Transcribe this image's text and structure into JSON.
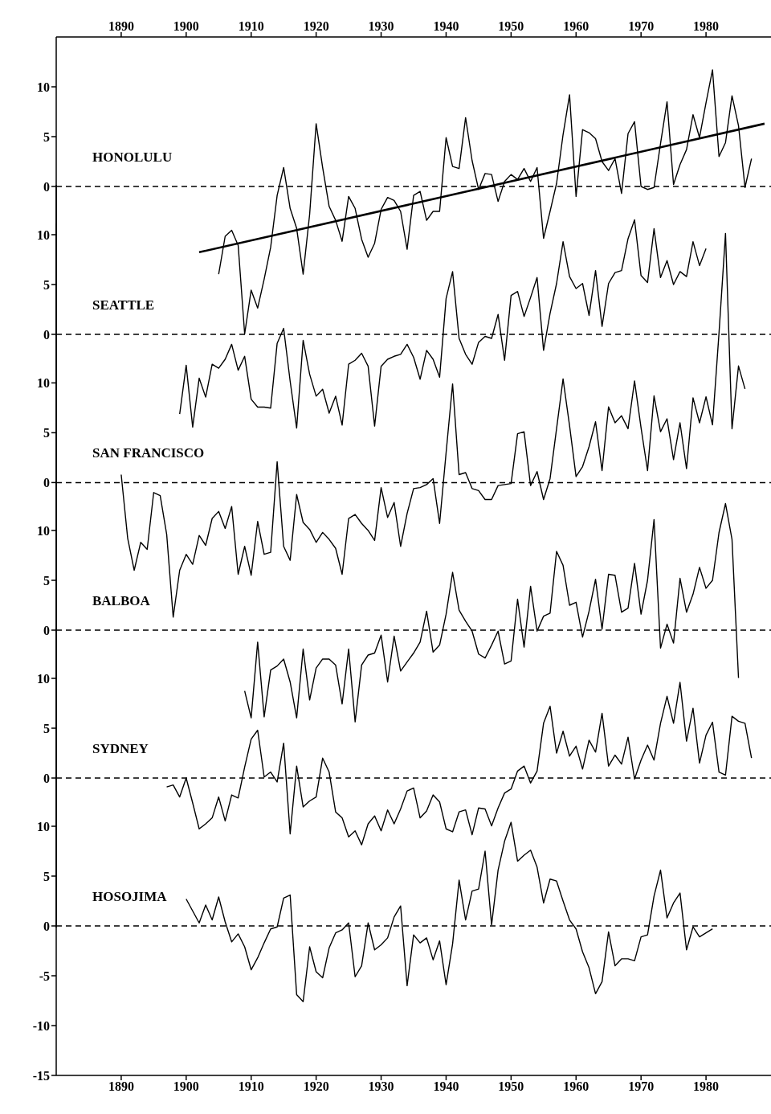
{
  "chart_data": [
    {
      "type": "line",
      "xlim": [
        1880,
        1990
      ],
      "xticks": [
        1890,
        1900,
        1910,
        1920,
        1930,
        1940,
        1950,
        1960,
        1970,
        1980
      ],
      "ylim": [
        -15,
        15
      ],
      "yticks": [
        0,
        5,
        10
      ],
      "grid": false,
      "legend": false,
      "marker": "none",
      "line_style": "solid",
      "ref_lines": [
        {
          "axis": "y",
          "value": 0,
          "line_style": "dashed"
        }
      ],
      "series": [
        {
          "name": "HONOLULU",
          "color": "#000000",
          "x": [
            1905,
            1906,
            1907,
            1908,
            1909,
            1910,
            1911,
            1912,
            1913,
            1914,
            1915,
            1916,
            1917,
            1918,
            1919,
            1920,
            1921,
            1922,
            1923,
            1924,
            1925,
            1926,
            1927,
            1928,
            1929,
            1930,
            1931,
            1932,
            1933,
            1934,
            1935,
            1936,
            1937,
            1938,
            1939,
            1940,
            1941,
            1942,
            1943,
            1944,
            1945,
            1946,
            1947,
            1948,
            1949,
            1950,
            1951,
            1952,
            1953,
            1954,
            1955,
            1956,
            1957,
            1958,
            1959,
            1960,
            1961,
            1962,
            1963,
            1964,
            1965,
            1966,
            1967,
            1968,
            1969,
            1970,
            1971,
            1972,
            1973,
            1974,
            1975,
            1976,
            1977,
            1978,
            1979,
            1980,
            1981,
            1982,
            1983,
            1984,
            1985,
            1986,
            1987
          ],
          "values": [
            -8.8,
            -5.0,
            -4.4,
            -5.9,
            -14.8,
            -10.4,
            -12.2,
            -9.3,
            -6.1,
            -0.9,
            1.9,
            -2.2,
            -4.2,
            -8.8,
            -2.8,
            6.3,
            1.9,
            -2.0,
            -3.4,
            -5.5,
            -1.0,
            -2.2,
            -5.3,
            -7.1,
            -5.7,
            -2.3,
            -1.1,
            -1.4,
            -2.5,
            -6.3,
            -0.9,
            -0.5,
            -3.4,
            -2.5,
            -2.5,
            4.9,
            2.0,
            1.8,
            6.9,
            2.6,
            -0.3,
            1.3,
            1.2,
            -1.5,
            0.5,
            1.2,
            0.7,
            1.8,
            0.5,
            1.9,
            -5.2,
            -2.5,
            0.3,
            5.2,
            9.2,
            -1.0,
            5.7,
            5.4,
            4.8,
            2.5,
            1.6,
            2.8,
            -0.7,
            5.3,
            6.5,
            0.0,
            -0.3,
            -0.1,
            4.3,
            8.5,
            0.2,
            2.2,
            3.7,
            7.2,
            4.9,
            8.4,
            11.7,
            3.0,
            4.4,
            9.1,
            6.1,
            -0.1,
            2.8
          ]
        },
        {
          "type": "line",
          "color": "#000000",
          "x": [
            1902,
            1989
          ],
          "values": [
            -6.6,
            6.3
          ]
        }
      ]
    },
    {
      "type": "line",
      "xlim": [
        1880,
        1990
      ],
      "tick_labels": "y",
      "ylim": [
        -15,
        15
      ],
      "yticks": [
        0,
        5,
        10
      ],
      "grid": false,
      "legend": false,
      "marker": "none",
      "line_style": "solid",
      "ref_lines": [
        {
          "axis": "y",
          "value": 0,
          "line_style": "dashed"
        }
      ],
      "series": [
        {
          "name": "SEATTLE",
          "color": "#000000",
          "x": [
            1899,
            1900,
            1901,
            1902,
            1903,
            1904,
            1905,
            1906,
            1907,
            1908,
            1909,
            1910,
            1911,
            1912,
            1913,
            1914,
            1915,
            1916,
            1917,
            1918,
            1919,
            1920,
            1921,
            1922,
            1923,
            1924,
            1925,
            1926,
            1927,
            1928,
            1929,
            1930,
            1931,
            1932,
            1933,
            1934,
            1935,
            1936,
            1937,
            1938,
            1939,
            1940,
            1941,
            1942,
            1943,
            1944,
            1945,
            1946,
            1947,
            1948,
            1949,
            1950,
            1951,
            1952,
            1953,
            1954,
            1955,
            1956,
            1957,
            1958,
            1959,
            1960,
            1961,
            1962,
            1963,
            1964,
            1965,
            1966,
            1967,
            1968,
            1969,
            1970,
            1971,
            1972,
            1973,
            1974,
            1975,
            1976,
            1977,
            1978,
            1979,
            1980
          ],
          "values": [
            -8.0,
            -3.1,
            -9.3,
            -4.4,
            -6.3,
            -3.0,
            -3.4,
            -2.5,
            -1.0,
            -3.6,
            -2.2,
            -6.5,
            -7.3,
            -7.3,
            -7.4,
            -0.9,
            0.6,
            -4.7,
            -9.4,
            -0.6,
            -4.0,
            -6.2,
            -5.5,
            -7.9,
            -6.2,
            -9.1,
            -3.0,
            -2.6,
            -1.9,
            -3.2,
            -9.2,
            -3.2,
            -2.5,
            -2.2,
            -2.0,
            -1.0,
            -2.3,
            -4.5,
            -1.6,
            -2.5,
            -4.3,
            3.6,
            6.3,
            -0.4,
            -2.0,
            -3.0,
            -0.8,
            -0.2,
            -0.4,
            2.0,
            -2.6,
            3.9,
            4.3,
            1.8,
            3.7,
            5.7,
            -1.6,
            2.1,
            5.1,
            9.3,
            5.8,
            4.6,
            5.1,
            1.9,
            6.4,
            0.8,
            5.1,
            6.2,
            6.4,
            9.6,
            11.5,
            5.9,
            5.2,
            10.6,
            5.7,
            7.4,
            5.0,
            6.3,
            5.8,
            9.3,
            6.9,
            8.6
          ]
        }
      ]
    },
    {
      "type": "line",
      "xlim": [
        1880,
        1990
      ],
      "tick_labels": "y",
      "ylim": [
        -15,
        26
      ],
      "yticks": [
        0,
        5,
        10
      ],
      "grid": false,
      "legend": false,
      "marker": "none",
      "line_style": "solid",
      "ref_lines": [
        {
          "axis": "y",
          "value": 0,
          "line_style": "dashed"
        }
      ],
      "series": [
        {
          "name": "SAN FRANCISCO",
          "color": "#000000",
          "x": [
            1890,
            1891,
            1892,
            1893,
            1894,
            1895,
            1896,
            1897,
            1898,
            1899,
            1900,
            1901,
            1902,
            1903,
            1904,
            1905,
            1906,
            1907,
            1908,
            1909,
            1910,
            1911,
            1912,
            1913,
            1914,
            1915,
            1916,
            1917,
            1918,
            1919,
            1920,
            1921,
            1922,
            1923,
            1924,
            1925,
            1926,
            1927,
            1928,
            1929,
            1930,
            1931,
            1932,
            1933,
            1934,
            1935,
            1936,
            1937,
            1938,
            1939,
            1940,
            1941,
            1942,
            1943,
            1944,
            1945,
            1946,
            1947,
            1948,
            1949,
            1950,
            1951,
            1952,
            1953,
            1954,
            1955,
            1956,
            1957,
            1958,
            1959,
            1960,
            1961,
            1962,
            1963,
            1964,
            1965,
            1966,
            1967,
            1968,
            1969,
            1970,
            1971,
            1972,
            1973,
            1974,
            1975,
            1976,
            1977,
            1978,
            1979,
            1980,
            1981,
            1982,
            1983,
            1984,
            1985,
            1986
          ],
          "values": [
            0.8,
            -5.6,
            -8.8,
            -6.0,
            -6.7,
            -1.0,
            -1.3,
            -5.2,
            -13.5,
            -8.8,
            -7.2,
            -8.2,
            -5.3,
            -6.3,
            -3.6,
            -2.9,
            -4.6,
            -2.4,
            -9.2,
            -6.4,
            -9.3,
            -3.9,
            -7.2,
            -7.0,
            2.1,
            -6.4,
            -7.8,
            -1.2,
            -4.0,
            -4.7,
            -6.0,
            -5.0,
            -5.7,
            -6.6,
            -9.2,
            -3.6,
            -3.2,
            -4.1,
            -4.8,
            -5.8,
            -0.5,
            -3.5,
            -2.0,
            -6.4,
            -3.1,
            -0.6,
            -0.5,
            -0.2,
            0.4,
            -4.1,
            3.0,
            9.9,
            0.8,
            1.0,
            -0.6,
            -0.8,
            -1.7,
            -1.7,
            -0.3,
            -0.2,
            -0.1,
            4.9,
            5.1,
            -0.3,
            1.1,
            -1.7,
            0.4,
            5.4,
            10.4,
            5.7,
            0.6,
            1.6,
            3.6,
            6.1,
            1.2,
            7.6,
            6.0,
            6.7,
            5.4,
            10.2,
            5.5,
            1.2,
            8.7,
            5.1,
            6.4,
            2.3,
            6.0,
            1.4,
            8.5,
            6.0,
            8.6,
            5.8,
            15,
            25,
            5.4,
            11.7,
            9.4
          ]
        }
      ]
    },
    {
      "type": "line",
      "xlim": [
        1880,
        1990
      ],
      "tick_labels": "y",
      "ylim": [
        -15,
        15
      ],
      "yticks": [
        0,
        5,
        10
      ],
      "grid": false,
      "legend": false,
      "marker": "none",
      "line_style": "solid",
      "ref_lines": [
        {
          "axis": "y",
          "value": 0,
          "line_style": "dashed"
        }
      ],
      "series": [
        {
          "name": "BALBOA",
          "color": "#000000",
          "x": [
            1909,
            1910,
            1911,
            1912,
            1913,
            1914,
            1915,
            1916,
            1917,
            1918,
            1919,
            1920,
            1921,
            1922,
            1923,
            1924,
            1925,
            1926,
            1927,
            1928,
            1929,
            1930,
            1931,
            1932,
            1933,
            1934,
            1935,
            1936,
            1937,
            1938,
            1939,
            1940,
            1941,
            1942,
            1943,
            1944,
            1945,
            1946,
            1947,
            1948,
            1949,
            1950,
            1951,
            1952,
            1953,
            1954,
            1955,
            1956,
            1957,
            1958,
            1959,
            1960,
            1961,
            1962,
            1963,
            1964,
            1965,
            1966,
            1967,
            1968,
            1969,
            1970,
            1971,
            1972,
            1973,
            1974,
            1975,
            1976,
            1977,
            1978,
            1979,
            1980,
            1981,
            1982,
            1983,
            1984,
            1985
          ],
          "values": [
            -6.1,
            -8.8,
            -1.2,
            -8.7,
            -4.0,
            -3.6,
            -2.9,
            -5.2,
            -8.8,
            -1.9,
            -7.0,
            -3.8,
            -2.9,
            -2.9,
            -3.5,
            -7.4,
            -1.9,
            -9.2,
            -3.5,
            -2.5,
            -2.3,
            -0.5,
            -5.2,
            -0.6,
            -4.1,
            -3.2,
            -2.3,
            -1.2,
            1.9,
            -2.2,
            -1.5,
            1.6,
            5.8,
            2.0,
            0.9,
            -0.1,
            -2.4,
            -2.8,
            -1.5,
            -0.1,
            -3.4,
            -3.1,
            3.1,
            -1.7,
            4.4,
            -0.1,
            1.4,
            1.7,
            7.9,
            6.5,
            2.5,
            2.8,
            -0.7,
            1.9,
            5.1,
            0.1,
            5.6,
            5.5,
            1.8,
            2.2,
            6.7,
            1.6,
            5.0,
            11.1,
            -1.8,
            0.6,
            -1.3,
            5.2,
            1.8,
            3.6,
            6.3,
            4.2,
            5.0,
            9.8,
            12.7,
            9.1,
            -4.8
          ]
        }
      ]
    },
    {
      "type": "line",
      "xlim": [
        1880,
        1990
      ],
      "tick_labels": "y",
      "ylim": [
        -15,
        15
      ],
      "yticks": [
        0,
        5,
        10
      ],
      "grid": false,
      "legend": false,
      "marker": "none",
      "line_style": "solid",
      "ref_lines": [
        {
          "axis": "y",
          "value": 0,
          "line_style": "dashed"
        }
      ],
      "series": [
        {
          "name": "SYDNEY",
          "color": "#000000",
          "x": [
            1897,
            1898,
            1899,
            1900,
            1901,
            1902,
            1903,
            1904,
            1905,
            1906,
            1907,
            1908,
            1909,
            1910,
            1911,
            1912,
            1913,
            1914,
            1915,
            1916,
            1917,
            1918,
            1919,
            1920,
            1921,
            1922,
            1923,
            1924,
            1925,
            1926,
            1927,
            1928,
            1929,
            1930,
            1931,
            1932,
            1933,
            1934,
            1935,
            1936,
            1937,
            1938,
            1939,
            1940,
            1941,
            1942,
            1943,
            1944,
            1945,
            1946,
            1947,
            1948,
            1949,
            1950,
            1951,
            1952,
            1953,
            1954,
            1955,
            1956,
            1957,
            1958,
            1959,
            1960,
            1961,
            1962,
            1963,
            1964,
            1965,
            1966,
            1967,
            1968,
            1969,
            1970,
            1971,
            1972,
            1973,
            1974,
            1975,
            1976,
            1977,
            1978,
            1979,
            1980,
            1981,
            1982,
            1983,
            1984,
            1985,
            1986,
            1987
          ],
          "values": [
            -0.9,
            -0.7,
            -1.9,
            0.0,
            -2.5,
            -5.1,
            -4.6,
            -4.0,
            -1.9,
            -4.3,
            -1.7,
            -2.0,
            1.1,
            3.9,
            4.8,
            0.1,
            0.6,
            -0.4,
            3.5,
            -5.6,
            1.2,
            -2.9,
            -2.3,
            -1.9,
            2.0,
            0.6,
            -3.4,
            -4.0,
            -5.9,
            -5.3,
            -6.7,
            -4.6,
            -3.8,
            -5.3,
            -3.2,
            -4.6,
            -3.1,
            -1.3,
            -1.0,
            -4.0,
            -3.3,
            -1.7,
            -2.4,
            -5.1,
            -5.4,
            -3.4,
            -3.2,
            -5.7,
            -3.0,
            -3.1,
            -4.8,
            -3.0,
            -1.5,
            -1.1,
            0.7,
            1.2,
            -0.5,
            0.7,
            5.5,
            7.2,
            2.5,
            4.7,
            2.2,
            3.2,
            0.9,
            3.8,
            2.6,
            6.5,
            1.2,
            2.3,
            1.4,
            4.1,
            -0.1,
            1.8,
            3.3,
            1.8,
            5.5,
            8.2,
            5.5,
            9.6,
            3.7,
            7.0,
            1.5,
            4.3,
            5.6,
            0.6,
            0.3,
            6.2,
            5.7,
            5.5,
            2.0
          ]
        }
      ]
    },
    {
      "type": "line",
      "xlim": [
        1880,
        1990
      ],
      "xticks": [
        1890,
        1900,
        1910,
        1920,
        1930,
        1940,
        1950,
        1960,
        1970,
        1980
      ],
      "ylim": [
        -15,
        15
      ],
      "yticks": [
        -15,
        -10,
        -5,
        0,
        5,
        10
      ],
      "grid": false,
      "legend": false,
      "marker": "none",
      "line_style": "solid",
      "ref_lines": [
        {
          "axis": "y",
          "value": 0,
          "line_style": "dashed"
        }
      ],
      "series": [
        {
          "name": "HOSOJIMA",
          "color": "#000000",
          "x": [
            1900,
            1902,
            1903,
            1904,
            1905,
            1906,
            1907,
            1908,
            1909,
            1910,
            1911,
            1912,
            1913,
            1914,
            1915,
            1916,
            1917,
            1918,
            1919,
            1920,
            1921,
            1922,
            1923,
            1924,
            1925,
            1926,
            1927,
            1928,
            1929,
            1930,
            1931,
            1932,
            1933,
            1934,
            1935,
            1936,
            1937,
            1938,
            1939,
            1940,
            1941,
            1942,
            1943,
            1944,
            1945,
            1946,
            1947,
            1948,
            1949,
            1950,
            1951,
            1952,
            1953,
            1954,
            1955,
            1956,
            1957,
            1958,
            1959,
            1960,
            1961,
            1962,
            1963,
            1964,
            1965,
            1966,
            1967,
            1968,
            1969,
            1970,
            1971,
            1972,
            1973,
            1974,
            1975,
            1976,
            1977,
            1978,
            1979,
            1980,
            1981
          ],
          "values": [
            2.7,
            0.3,
            2.1,
            0.6,
            2.9,
            0.4,
            -1.6,
            -0.8,
            -2.1,
            -4.4,
            -3.2,
            -1.7,
            -0.3,
            -0.1,
            2.8,
            3.1,
            -6.9,
            -7.6,
            -2.1,
            -4.6,
            -5.2,
            -2.2,
            -0.7,
            -0.4,
            0.3,
            -5.1,
            -4.0,
            0.3,
            -2.4,
            -1.9,
            -1.2,
            0.9,
            2.0,
            -6.0,
            -0.9,
            -1.7,
            -1.2,
            -3.4,
            -1.5,
            -5.9,
            -1.8,
            4.6,
            0.6,
            3.5,
            3.7,
            7.5,
            0.1,
            5.6,
            8.5,
            10.4,
            6.5,
            7.1,
            7.6,
            5.9,
            2.3,
            4.7,
            4.5,
            2.5,
            0.6,
            -0.3,
            -2.6,
            -4.2,
            -6.8,
            -5.6,
            -0.6,
            -4.0,
            -3.3,
            -3.3,
            -3.5,
            -1.1,
            -0.9,
            3.0,
            5.6,
            0.8,
            2.3,
            3.3,
            -2.4,
            -0.1,
            -1.1,
            -0.7,
            -0.3
          ]
        }
      ]
    }
  ]
}
